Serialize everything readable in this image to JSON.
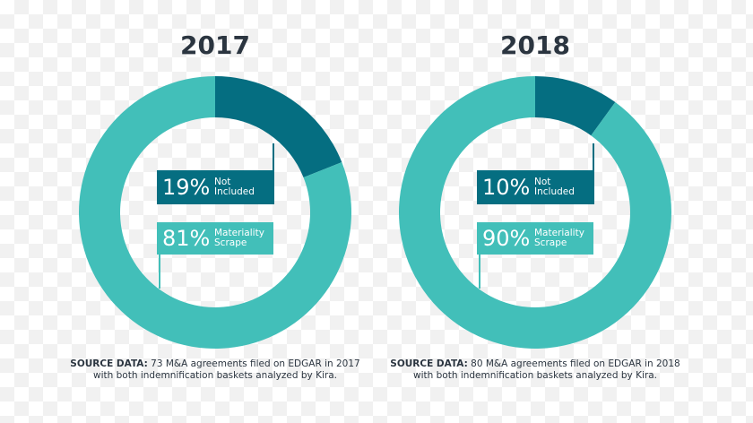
{
  "chart_data": [
    {
      "type": "pie",
      "title": "2017",
      "categories": [
        "Not Included",
        "Materiality Scrape"
      ],
      "values": [
        19,
        81
      ],
      "value_labels": [
        "19%",
        "81%"
      ],
      "colors": [
        "#056e81",
        "#42bfb9"
      ],
      "source_label": "SOURCE DATA:",
      "source_lines": [
        "73 M&A agreements filed on EDGAR in 2017",
        "with both indemnification baskets analyzed by Kira."
      ]
    },
    {
      "type": "pie",
      "title": "2018",
      "categories": [
        "Not Included",
        "Materiality Scrape"
      ],
      "values": [
        10,
        90
      ],
      "value_labels": [
        "10%",
        "90%"
      ],
      "colors": [
        "#056e81",
        "#42bfb9"
      ],
      "source_label": "SOURCE DATA:",
      "source_lines": [
        "80 M&A agreements filed on EDGAR in 2018",
        "with both indemnification baskets analyzed by Kira."
      ]
    }
  ]
}
